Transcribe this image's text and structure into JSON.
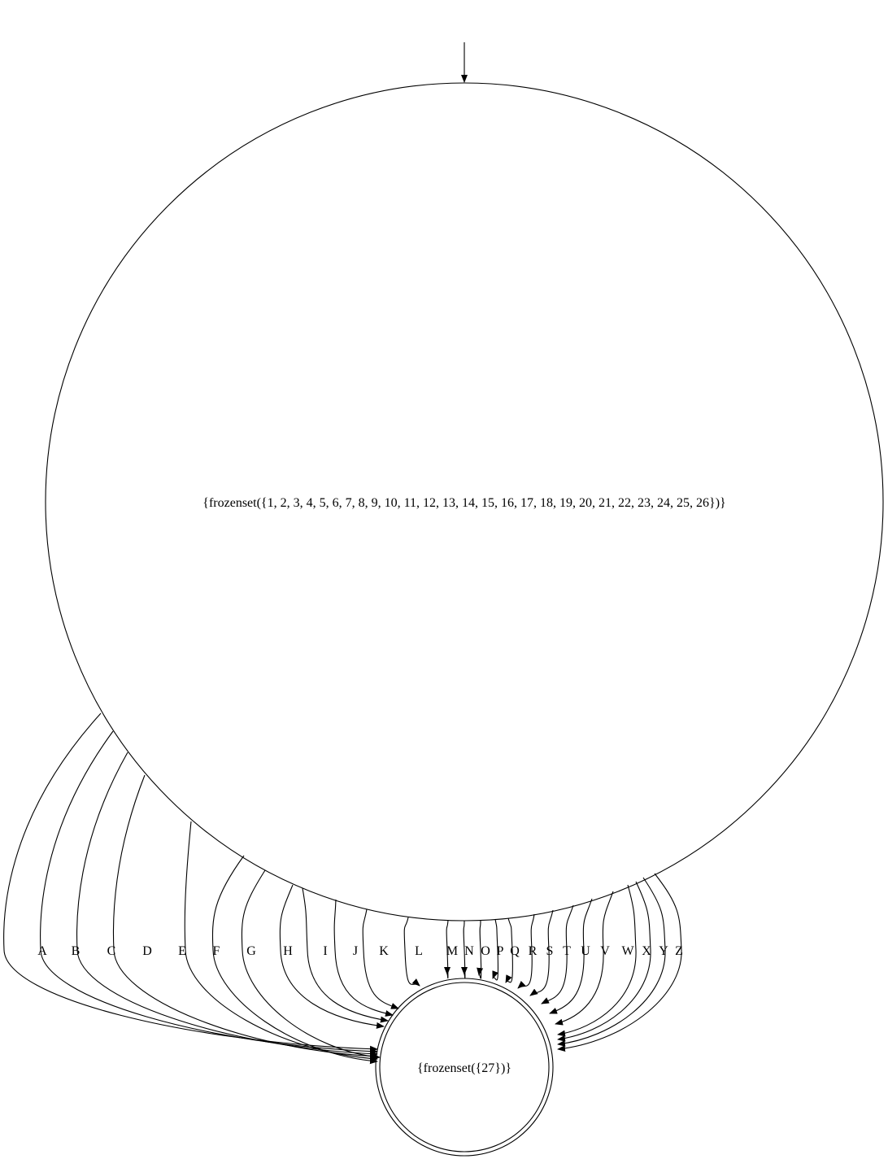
{
  "diagram": {
    "type": "state-machine",
    "stroke_color": "#000000",
    "background_color": "#ffffff",
    "start_state": {
      "label": "{frozenset({1, 2, 3, 4, 5, 6, 7, 8, 9, 10, 11, 12, 13, 14, 15, 16, 17, 18, 19, 20, 21, 22, 23, 24, 25, 26})}",
      "initial": true,
      "accepting": false
    },
    "accept_state": {
      "label": "{frozenset({27})}",
      "initial": false,
      "accepting": true
    },
    "transitions": [
      "A",
      "B",
      "C",
      "D",
      "E",
      "F",
      "G",
      "H",
      "I",
      "J",
      "K",
      "L",
      "M",
      "N",
      "O",
      "P",
      "Q",
      "R",
      "S",
      "T",
      "U",
      "V",
      "W",
      "X",
      "Y",
      "Z"
    ]
  }
}
